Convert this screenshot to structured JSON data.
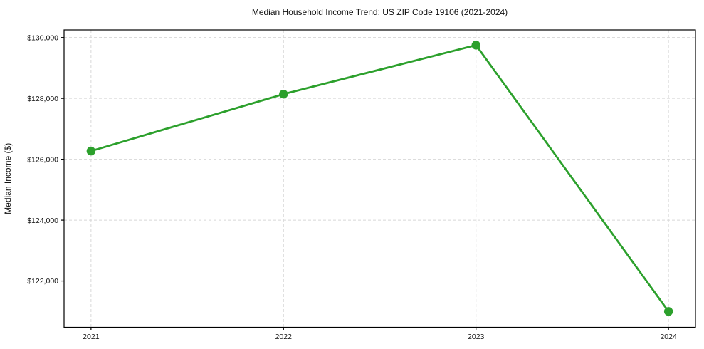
{
  "chart_data": {
    "type": "line",
    "title": "Median Household Income Trend: US ZIP Code 19106 (2021-2024)",
    "xlabel": "",
    "ylabel": "Median Income ($)",
    "x": [
      2021,
      2022,
      2023,
      2024
    ],
    "values": [
      126270,
      128140,
      129750,
      121000
    ],
    "xtick_labels": [
      "2021",
      "2022",
      "2023",
      "2024"
    ],
    "yticks": [
      122000,
      124000,
      126000,
      128000,
      130000
    ],
    "ytick_labels": [
      "$122,000",
      "$124,000",
      "$126,000",
      "$128,000",
      "$130,000"
    ],
    "xlim": [
      2020.86,
      2024.14
    ],
    "ylim": [
      120480,
      130250
    ],
    "grid": true,
    "grid_style": "dashed",
    "legend": "none",
    "line_color": "#2ca02c",
    "marker": "circle",
    "grid_color": "#d8d8d8",
    "spine_color": "#000000",
    "tick_text_color": "#1a1a1a",
    "background_color": "#ffffff"
  }
}
